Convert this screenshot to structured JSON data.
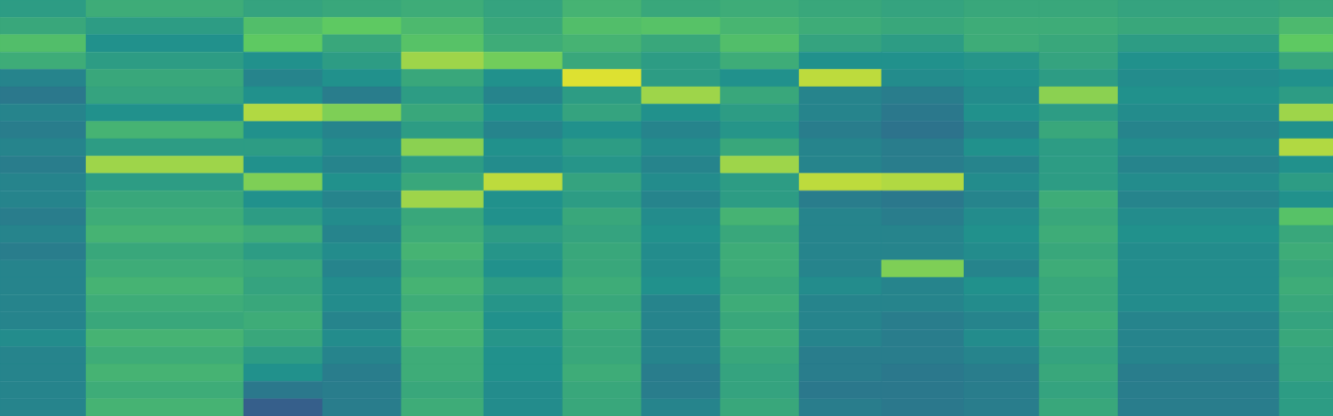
{
  "chart_data": {
    "type": "heatmap",
    "color": "viridis",
    "tick_labels": false,
    "xlim": [
      0,
      372
    ],
    "ylim": [
      0,
      24
    ],
    "zlim": [
      0,
      1
    ],
    "x_edges": [
      0,
      24,
      68,
      90,
      112,
      135,
      157,
      179,
      201,
      223,
      246,
      269,
      290,
      312,
      357,
      372
    ],
    "cells": [
      [
        0.55,
        0.62,
        0.58,
        0.6,
        0.62,
        0.58,
        0.65,
        0.6,
        0.62,
        0.6,
        0.58,
        0.6,
        0.6,
        0.58,
        0.6
      ],
      [
        0.6,
        0.55,
        0.7,
        0.75,
        0.68,
        0.6,
        0.7,
        0.72,
        0.66,
        0.62,
        0.6,
        0.62,
        0.62,
        0.6,
        0.68
      ],
      [
        0.7,
        0.5,
        0.75,
        0.6,
        0.72,
        0.62,
        0.65,
        0.6,
        0.7,
        0.58,
        0.55,
        0.62,
        0.6,
        0.55,
        0.75
      ],
      [
        0.62,
        0.55,
        0.5,
        0.55,
        0.85,
        0.78,
        0.6,
        0.55,
        0.62,
        0.5,
        0.5,
        0.52,
        0.58,
        0.5,
        0.6
      ],
      [
        0.45,
        0.6,
        0.45,
        0.5,
        0.6,
        0.5,
        0.95,
        0.55,
        0.5,
        0.9,
        0.48,
        0.5,
        0.55,
        0.48,
        0.5
      ],
      [
        0.4,
        0.58,
        0.5,
        0.42,
        0.55,
        0.45,
        0.55,
        0.85,
        0.6,
        0.45,
        0.42,
        0.48,
        0.82,
        0.5,
        0.55
      ],
      [
        0.45,
        0.5,
        0.88,
        0.8,
        0.6,
        0.5,
        0.58,
        0.5,
        0.55,
        0.45,
        0.4,
        0.5,
        0.55,
        0.48,
        0.85
      ],
      [
        0.42,
        0.65,
        0.5,
        0.45,
        0.55,
        0.45,
        0.5,
        0.45,
        0.52,
        0.42,
        0.38,
        0.45,
        0.6,
        0.45,
        0.5
      ],
      [
        0.45,
        0.55,
        0.55,
        0.48,
        0.82,
        0.5,
        0.55,
        0.48,
        0.6,
        0.45,
        0.42,
        0.5,
        0.55,
        0.48,
        0.88
      ],
      [
        0.42,
        0.85,
        0.5,
        0.45,
        0.55,
        0.48,
        0.52,
        0.45,
        0.85,
        0.45,
        0.42,
        0.45,
        0.55,
        0.45,
        0.5
      ],
      [
        0.45,
        0.55,
        0.8,
        0.5,
        0.6,
        0.9,
        0.58,
        0.48,
        0.55,
        0.9,
        0.88,
        0.48,
        0.55,
        0.48,
        0.55
      ],
      [
        0.45,
        0.6,
        0.5,
        0.45,
        0.85,
        0.5,
        0.55,
        0.45,
        0.55,
        0.42,
        0.4,
        0.45,
        0.62,
        0.45,
        0.5
      ],
      [
        0.42,
        0.62,
        0.55,
        0.48,
        0.6,
        0.5,
        0.6,
        0.48,
        0.65,
        0.45,
        0.42,
        0.48,
        0.6,
        0.48,
        0.72
      ],
      [
        0.45,
        0.65,
        0.62,
        0.45,
        0.62,
        0.55,
        0.58,
        0.5,
        0.6,
        0.45,
        0.45,
        0.5,
        0.62,
        0.5,
        0.6
      ],
      [
        0.42,
        0.6,
        0.55,
        0.48,
        0.65,
        0.52,
        0.6,
        0.48,
        0.62,
        0.45,
        0.45,
        0.48,
        0.6,
        0.48,
        0.62
      ],
      [
        0.45,
        0.62,
        0.6,
        0.45,
        0.62,
        0.5,
        0.6,
        0.48,
        0.62,
        0.45,
        0.8,
        0.45,
        0.62,
        0.48,
        0.6
      ],
      [
        0.45,
        0.65,
        0.58,
        0.48,
        0.65,
        0.55,
        0.62,
        0.5,
        0.6,
        0.48,
        0.45,
        0.5,
        0.6,
        0.48,
        0.62
      ],
      [
        0.45,
        0.62,
        0.6,
        0.48,
        0.62,
        0.52,
        0.6,
        0.45,
        0.62,
        0.45,
        0.45,
        0.48,
        0.6,
        0.48,
        0.6
      ],
      [
        0.45,
        0.6,
        0.62,
        0.45,
        0.65,
        0.5,
        0.62,
        0.45,
        0.6,
        0.45,
        0.42,
        0.45,
        0.62,
        0.45,
        0.58
      ],
      [
        0.48,
        0.65,
        0.6,
        0.48,
        0.65,
        0.52,
        0.6,
        0.45,
        0.62,
        0.45,
        0.42,
        0.48,
        0.6,
        0.45,
        0.6
      ],
      [
        0.45,
        0.62,
        0.55,
        0.45,
        0.62,
        0.5,
        0.6,
        0.45,
        0.6,
        0.42,
        0.42,
        0.45,
        0.58,
        0.45,
        0.58
      ],
      [
        0.45,
        0.65,
        0.5,
        0.42,
        0.62,
        0.5,
        0.62,
        0.42,
        0.58,
        0.42,
        0.4,
        0.42,
        0.6,
        0.42,
        0.58
      ],
      [
        0.45,
        0.62,
        0.4,
        0.42,
        0.6,
        0.48,
        0.6,
        0.42,
        0.58,
        0.4,
        0.4,
        0.42,
        0.58,
        0.42,
        0.55
      ],
      [
        0.45,
        0.65,
        0.3,
        0.42,
        0.62,
        0.48,
        0.6,
        0.45,
        0.6,
        0.42,
        0.4,
        0.42,
        0.6,
        0.42,
        0.55
      ]
    ]
  }
}
